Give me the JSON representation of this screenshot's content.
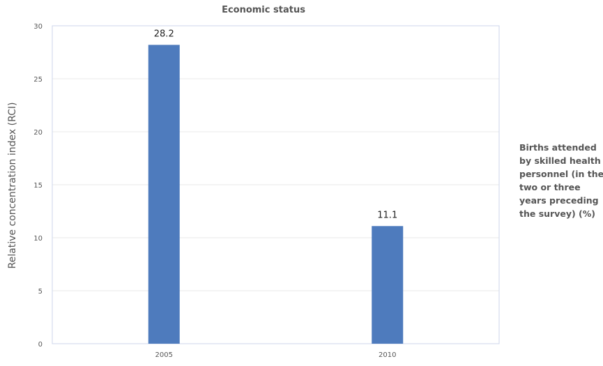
{
  "chart_data": {
    "type": "bar",
    "title": "Economic status",
    "xlabel": "",
    "ylabel": "Relative concentration index (RCI)",
    "categories": [
      "2005",
      "2010"
    ],
    "series": [
      {
        "name": "Births attended by skilled health personnel (in the two or three years preceding the survey) (%)",
        "values": [
          28.2,
          11.1
        ],
        "labels": [
          "28.2",
          "11.1"
        ],
        "color": "#4e7bbd"
      }
    ],
    "ylim": [
      0,
      30
    ],
    "yticks": [
      0,
      5,
      10,
      15,
      20,
      25,
      30
    ],
    "grid": true,
    "legend_position": "right"
  },
  "legend_lines": [
    "Births attended",
    "by skilled health",
    "personnel (in the",
    "two or three",
    "years preceding",
    "the survey) (%)"
  ]
}
